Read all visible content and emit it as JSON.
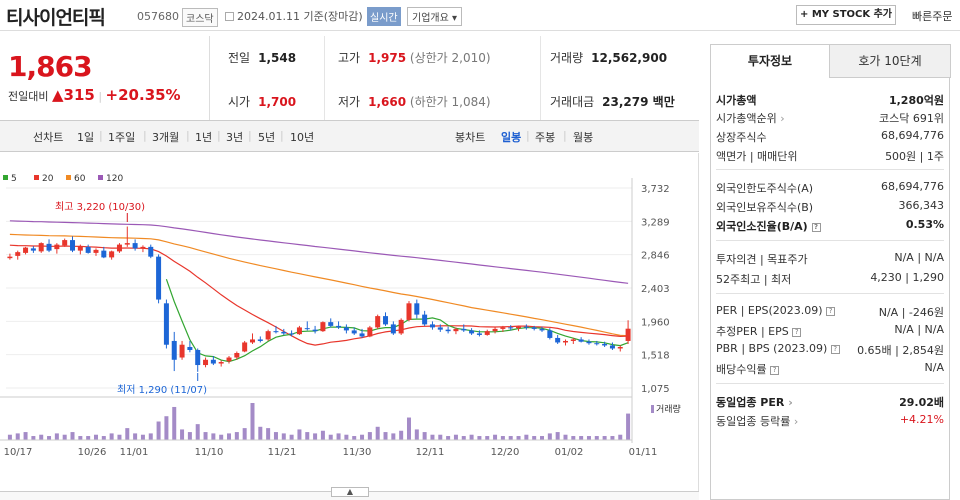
{
  "header": {
    "company": "티사이언티픽",
    "code": "057680",
    "market": "코스닥",
    "date_text": "2024.01.11 기준(장마감)",
    "realtime": "실시간",
    "company_info": "기업개요",
    "mystock": "+ MY STOCK 추가",
    "quick_order": "빠른주문"
  },
  "price": {
    "current": "1,863",
    "change_label": "전일대비",
    "change_value": "315",
    "change_pct": "+20.35%"
  },
  "stats": {
    "prev_label": "전일",
    "prev": "1,548",
    "high_label": "고가",
    "high": "1,975",
    "upper_limit": "(상한가 2,010)",
    "volume_label": "거래량",
    "volume": "12,562,900",
    "open_label": "시가",
    "open": "1,700",
    "low_label": "저가",
    "low": "1,660",
    "lower_limit": "(하한가 1,084)",
    "amount_label": "거래대금",
    "amount": "23,279 백만"
  },
  "chart_tabs": {
    "line_label": "선차트",
    "periods": [
      "1일",
      "1주일",
      "3개월",
      "1년",
      "3년",
      "5년",
      "10년"
    ],
    "candle_label": "봉차트",
    "candles": [
      "일봉",
      "주봉",
      "월봉"
    ],
    "active_candle": "일봉"
  },
  "chart_data": {
    "type": "candlestick",
    "legend": [
      "5",
      "20",
      "60",
      "120"
    ],
    "colors": {
      "ma5": "#33a631",
      "ma20": "#e8362c",
      "ma60": "#f08a24",
      "ma120": "#9b59b6",
      "up": "#e8362c",
      "down": "#1d66d6",
      "volume": "#a48bc7"
    },
    "y_ticks": [
      "3,732",
      "3,289",
      "2,846",
      "2,403",
      "1,960",
      "1,518",
      "1,075"
    ],
    "ylim": [
      1075,
      3732
    ],
    "x_labels": [
      "10/17",
      "10/26",
      "11/01",
      "11/10",
      "11/21",
      "11/30",
      "12/11",
      "12/20",
      "01/02",
      "01/11"
    ],
    "high_annotation": "최고 3,220 (10/30)",
    "low_annotation": "최저 1,290 (11/07)",
    "volume_label": "거래량",
    "candles": [
      [
        2800,
        2860,
        2780,
        2820
      ],
      [
        2830,
        2900,
        2780,
        2880
      ],
      [
        2870,
        2950,
        2850,
        2940
      ],
      [
        2930,
        2960,
        2870,
        2900
      ],
      [
        2890,
        3010,
        2870,
        3000
      ],
      [
        2990,
        3050,
        2880,
        2900
      ],
      [
        2920,
        3000,
        2860,
        2980
      ],
      [
        2970,
        3060,
        2950,
        3040
      ],
      [
        3040,
        3090,
        2880,
        2900
      ],
      [
        2900,
        2980,
        2850,
        2960
      ],
      [
        2950,
        2980,
        2860,
        2870
      ],
      [
        2870,
        2930,
        2830,
        2910
      ],
      [
        2900,
        2950,
        2800,
        2810
      ],
      [
        2810,
        2900,
        2780,
        2890
      ],
      [
        2890,
        3000,
        2870,
        2980
      ],
      [
        2980,
        3220,
        2950,
        3000
      ],
      [
        3000,
        3050,
        2900,
        2930
      ],
      [
        2930,
        2970,
        2880,
        2950
      ],
      [
        2950,
        2980,
        2800,
        2820
      ],
      [
        2820,
        2850,
        2200,
        2250
      ],
      [
        2200,
        2250,
        1600,
        1650
      ],
      [
        1700,
        1820,
        1300,
        1450
      ],
      [
        1480,
        1700,
        1450,
        1650
      ],
      [
        1620,
        1700,
        1550,
        1580
      ],
      [
        1580,
        1600,
        1290,
        1380
      ],
      [
        1380,
        1480,
        1350,
        1450
      ],
      [
        1450,
        1500,
        1380,
        1400
      ],
      [
        1400,
        1440,
        1360,
        1420
      ],
      [
        1430,
        1500,
        1400,
        1480
      ],
      [
        1480,
        1560,
        1450,
        1540
      ],
      [
        1560,
        1700,
        1550,
        1680
      ],
      [
        1680,
        1800,
        1660,
        1720
      ],
      [
        1720,
        1760,
        1680,
        1700
      ],
      [
        1720,
        1850,
        1700,
        1830
      ],
      [
        1830,
        1900,
        1800,
        1820
      ],
      [
        1820,
        1860,
        1780,
        1800
      ],
      [
        1800,
        1840,
        1760,
        1790
      ],
      [
        1790,
        1900,
        1780,
        1880
      ],
      [
        1870,
        1960,
        1840,
        1860
      ],
      [
        1850,
        1900,
        1800,
        1830
      ],
      [
        1830,
        1960,
        1820,
        1950
      ],
      [
        1950,
        2000,
        1880,
        1900
      ],
      [
        1900,
        1960,
        1860,
        1880
      ],
      [
        1880,
        1920,
        1800,
        1840
      ],
      [
        1840,
        1880,
        1780,
        1800
      ],
      [
        1800,
        1860,
        1740,
        1760
      ],
      [
        1760,
        1900,
        1750,
        1880
      ],
      [
        1880,
        2050,
        1860,
        2030
      ],
      [
        2030,
        2080,
        1900,
        1920
      ],
      [
        1920,
        1960,
        1780,
        1800
      ],
      [
        1800,
        2000,
        1780,
        1980
      ],
      [
        1980,
        2230,
        1960,
        2200
      ],
      [
        2200,
        2250,
        2000,
        2050
      ],
      [
        2050,
        2100,
        1900,
        1920
      ],
      [
        1920,
        1960,
        1850,
        1880
      ],
      [
        1880,
        1920,
        1820,
        1850
      ],
      [
        1850,
        1890,
        1800,
        1830
      ],
      [
        1830,
        1880,
        1790,
        1860
      ],
      [
        1860,
        1920,
        1820,
        1840
      ],
      [
        1840,
        1870,
        1780,
        1800
      ],
      [
        1800,
        1840,
        1760,
        1780
      ],
      [
        1780,
        1850,
        1770,
        1830
      ],
      [
        1830,
        1880,
        1800,
        1860
      ],
      [
        1860,
        1900,
        1820,
        1880
      ],
      [
        1880,
        1910,
        1840,
        1870
      ],
      [
        1870,
        1900,
        1830,
        1890
      ],
      [
        1890,
        1920,
        1850,
        1880
      ],
      [
        1880,
        1900,
        1840,
        1860
      ],
      [
        1860,
        1890,
        1820,
        1840
      ],
      [
        1840,
        1870,
        1720,
        1740
      ],
      [
        1740,
        1780,
        1660,
        1680
      ],
      [
        1680,
        1720,
        1640,
        1700
      ],
      [
        1700,
        1740,
        1660,
        1720
      ],
      [
        1720,
        1750,
        1680,
        1690
      ],
      [
        1690,
        1720,
        1650,
        1670
      ],
      [
        1670,
        1700,
        1640,
        1660
      ],
      [
        1660,
        1690,
        1620,
        1640
      ],
      [
        1640,
        1680,
        1580,
        1600
      ],
      [
        1600,
        1640,
        1560,
        1620
      ],
      [
        1700,
        1975,
        1660,
        1863
      ]
    ],
    "volumes": [
      4,
      5,
      6,
      3,
      4,
      3,
      5,
      4,
      6,
      3,
      3,
      4,
      3,
      5,
      4,
      9,
      5,
      4,
      5,
      14,
      18,
      25,
      8,
      6,
      12,
      6,
      5,
      4,
      5,
      6,
      9,
      28,
      10,
      9,
      6,
      5,
      4,
      8,
      6,
      5,
      7,
      4,
      5,
      4,
      3,
      4,
      6,
      10,
      6,
      5,
      7,
      17,
      8,
      6,
      4,
      4,
      3,
      4,
      3,
      4,
      3,
      3,
      4,
      3,
      3,
      3,
      4,
      3,
      3,
      5,
      6,
      4,
      3,
      3,
      3,
      3,
      3,
      3,
      4,
      20
    ]
  },
  "sidebar": {
    "tab_active": "투자정보",
    "tab_other": "호가 10단계",
    "market_cap_label": "시가총액",
    "market_cap": "1,280억원",
    "cap_rank_label": "시가총액순위",
    "cap_rank": "코스닥 691위",
    "shares_label": "상장주식수",
    "shares": "68,694,776",
    "par_label": "액면가 | 매매단위",
    "par": "500원 | 1주",
    "foreign_limit_label": "외국인한도주식수(A)",
    "foreign_limit": "68,694,776",
    "foreign_hold_label": "외국인보유주식수(B)",
    "foreign_hold": "366,343",
    "foreign_ratio_label": "외국인소진율(B/A)",
    "foreign_ratio": "0.53%",
    "opinion_label": "투자의견 | 목표주가",
    "opinion": "N/A | N/A",
    "week52_label": "52주최고 | 최저",
    "week52": "4,230 | 1,290",
    "per_label": "PER | EPS(2023.09)",
    "per": "N/A | -246원",
    "est_per_label": "추정PER | EPS",
    "est_per": "N/A | N/A",
    "pbr_label": "PBR | BPS (2023.09)",
    "pbr": "0.65배 | 2,854원",
    "div_label": "배당수익률",
    "div": "N/A",
    "sector_per_label": "동일업종 PER",
    "sector_per": "29.02배",
    "sector_chg_label": "동일업종 등락률",
    "sector_chg": "+4.21%"
  }
}
